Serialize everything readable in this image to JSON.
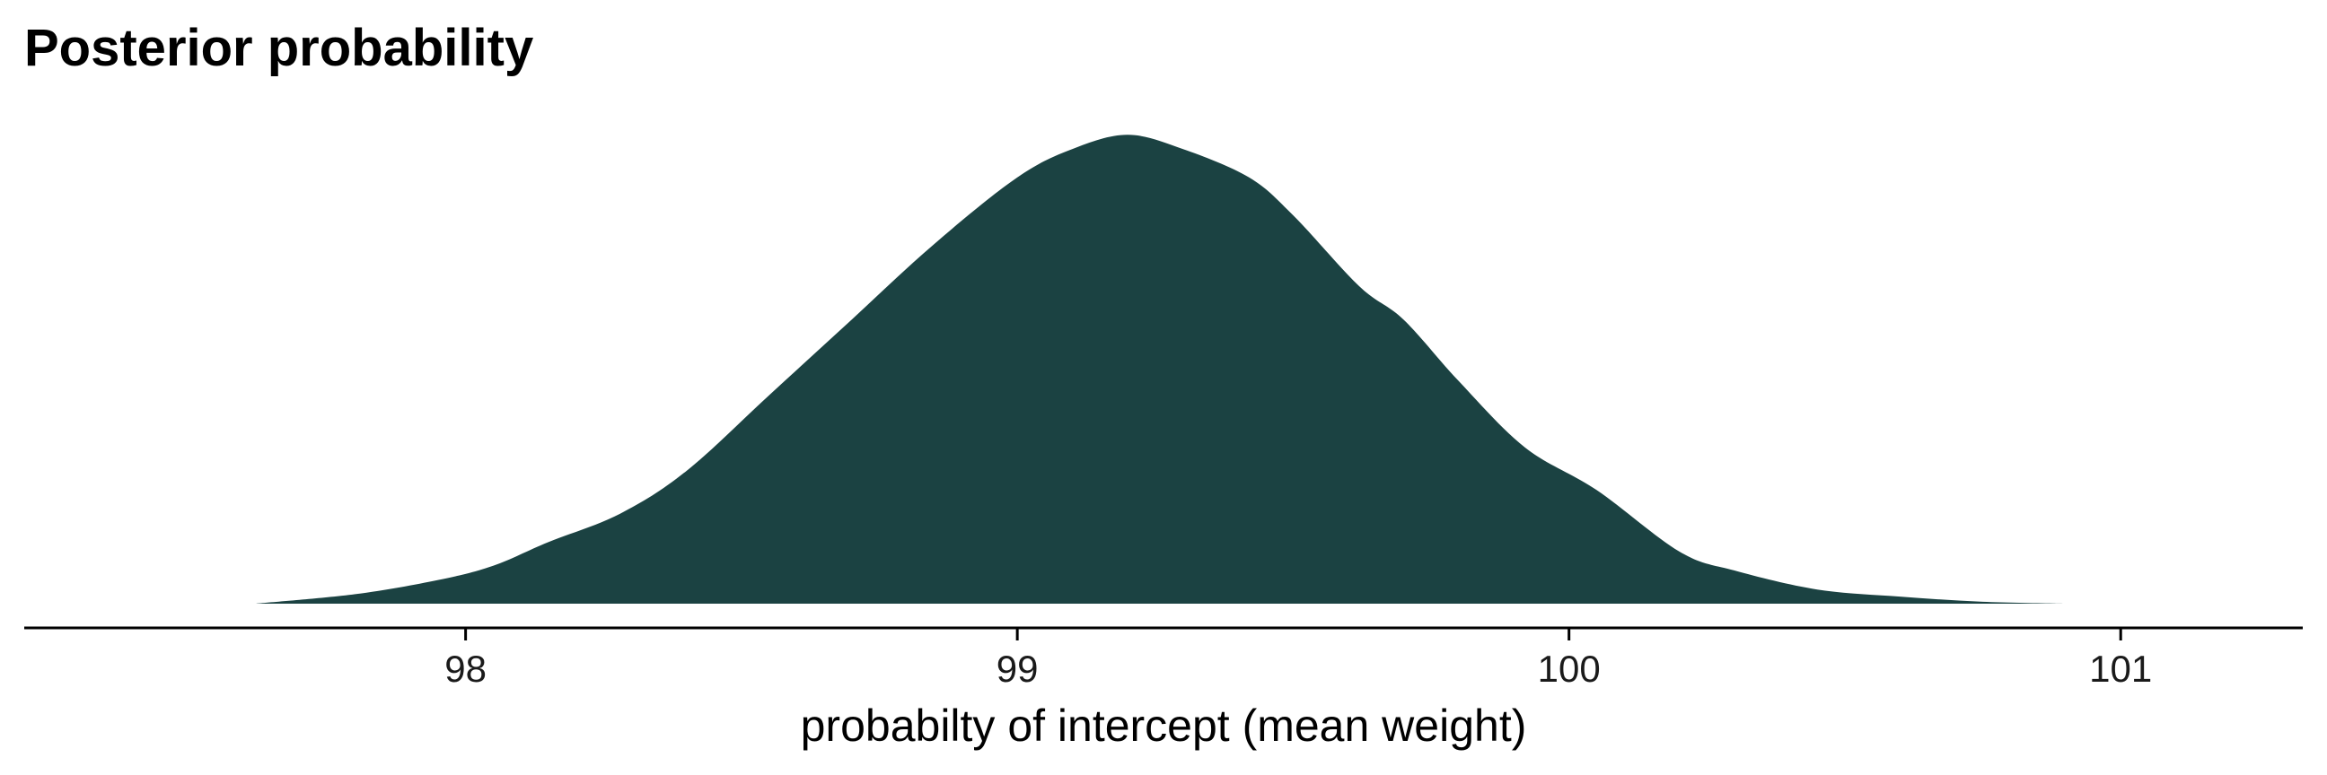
{
  "chart_data": {
    "type": "area",
    "title": "Posterior probability",
    "xlabel": "probabilty of intercept (mean weight)",
    "ylabel": "",
    "xlim": [
      97.2,
      101.33
    ],
    "ylim": [
      0,
      1.0
    ],
    "grid": false,
    "legend": "none",
    "fill_color": "#1b4242",
    "x_ticks": [
      98,
      99,
      100,
      101
    ],
    "tick_labels": [
      "98",
      "99",
      "100",
      "101"
    ],
    "series": [
      {
        "x": [
          97.62,
          97.8,
          97.95,
          98.05,
          98.15,
          98.28,
          98.4,
          98.55,
          98.7,
          98.85,
          99.0,
          99.1,
          99.2,
          99.3,
          99.42,
          99.5,
          99.62,
          99.7,
          99.8,
          99.92,
          100.05,
          100.2,
          100.3,
          100.45,
          100.6,
          100.75,
          100.9
        ],
        "values": [
          0.0,
          0.02,
          0.05,
          0.08,
          0.13,
          0.19,
          0.28,
          0.44,
          0.6,
          0.76,
          0.9,
          0.96,
          0.99,
          0.96,
          0.9,
          0.82,
          0.67,
          0.6,
          0.47,
          0.33,
          0.24,
          0.11,
          0.07,
          0.03,
          0.015,
          0.004,
          0.0
        ]
      }
    ]
  }
}
